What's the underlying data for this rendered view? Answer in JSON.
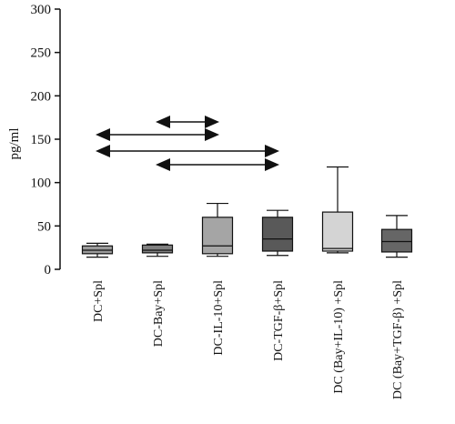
{
  "chart_data": {
    "type": "box",
    "ylabel": "pg/ml",
    "ylim": [
      0,
      300
    ],
    "yticks": [
      0,
      50,
      100,
      150,
      200,
      250,
      300
    ],
    "categories": [
      "DC+Spl",
      "DC-Bay+Spl",
      "DC-IL-10+Spl",
      "DC-TGF-β+Spl",
      "DC (Bay+IL-10) +Spl",
      "DC (Bay+TGF-β) +Spl"
    ],
    "boxes": [
      {
        "min": 14,
        "q1": 18,
        "median": 22,
        "q3": 27,
        "max": 30,
        "color": "#9a9a9a"
      },
      {
        "min": 15,
        "q1": 19,
        "median": 22,
        "q3": 28,
        "max": 29,
        "color": "#7f7f7f"
      },
      {
        "min": 15,
        "q1": 18,
        "median": 27,
        "q3": 60,
        "max": 76,
        "color": "#a5a5a5"
      },
      {
        "min": 16,
        "q1": 21,
        "median": 35,
        "q3": 60,
        "max": 68,
        "color": "#595959"
      },
      {
        "min": 19,
        "q1": 21,
        "median": 24,
        "q3": 66,
        "max": 118,
        "color": "#d4d4d4"
      },
      {
        "min": 14,
        "q1": 20,
        "median": 32,
        "q3": 46,
        "max": 62,
        "color": "#666666"
      }
    ],
    "arrows": [
      {
        "from": 1,
        "to": 3,
        "y": 181
      },
      {
        "from": 0,
        "to": 3,
        "y": 166
      },
      {
        "from": 0,
        "to": 2,
        "y": 148
      },
      {
        "from": 1,
        "to": 2,
        "y": 134
      }
    ]
  }
}
